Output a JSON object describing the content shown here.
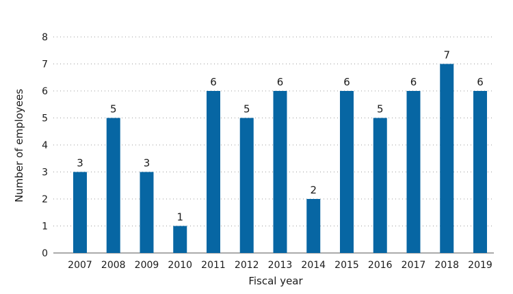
{
  "chart_data": {
    "type": "bar",
    "title": "",
    "xlabel": "Fiscal year",
    "ylabel": "Number of employees",
    "categories": [
      "2007",
      "2008",
      "2009",
      "2010",
      "2011",
      "2012",
      "2013",
      "2014",
      "2015",
      "2016",
      "2017",
      "2018",
      "2019"
    ],
    "values": [
      3,
      5,
      3,
      1,
      6,
      5,
      6,
      2,
      6,
      5,
      6,
      7,
      6
    ],
    "ylim": [
      0,
      8
    ],
    "yticks": [
      "0",
      "1",
      "2",
      "3",
      "4",
      "5",
      "6",
      "7",
      "8"
    ],
    "grid": true,
    "data_labels": true,
    "bar_color": "#0766a3"
  }
}
